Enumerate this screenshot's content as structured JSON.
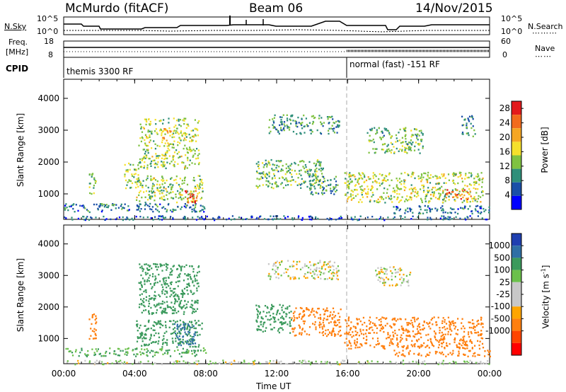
{
  "header": {
    "title_left": "McMurdo (fitACF)",
    "title_center": "Beam 06",
    "title_right": "14/Nov/2015"
  },
  "nsky_panel": {
    "left_label": "N.Sky",
    "right_label": "N.Search",
    "left_ticks": [
      "10^5",
      "10^0"
    ],
    "right_ticks": [
      "10^5",
      "10^0"
    ]
  },
  "freq_panel": {
    "left_label_line1": "Freq.",
    "left_label_line2": "[MHz]",
    "right_label": "Nave",
    "left_ticks": [
      "18",
      "8"
    ],
    "right_ticks": [
      "60",
      "0"
    ]
  },
  "cpid_panel": {
    "label": "CPID",
    "segments": [
      {
        "text": "themis 3300 RF",
        "start": "00:00"
      },
      {
        "text": "normal (fast) -151 RF",
        "start": "16:00"
      }
    ]
  },
  "colors": {
    "power_scale": [
      "#0000ff",
      "#1a4fa8",
      "#2f8f7a",
      "#7fc241",
      "#f5e02b",
      "#f5a623",
      "#f26b1d",
      "#e31a1c"
    ],
    "velocity_scale": [
      "#ff0000",
      "#ff4500",
      "#ff7f0e",
      "#ffa500",
      "#c8c8c8",
      "#c8c8c8",
      "#6bc04b",
      "#3b9a5c",
      "#2f6fa5",
      "#1f3fb0"
    ]
  },
  "chart_data": [
    {
      "type": "heatmap",
      "panel": "power",
      "ylabel": "Slant Range [km]",
      "xlim": [
        "00:00",
        "24:00"
      ],
      "ylim": [
        200,
        4600
      ],
      "y_ticks": [
        "1000",
        "2000",
        "3000",
        "4000"
      ],
      "colorbar": {
        "label": "Power [dB]",
        "ticks": [
          "4",
          "8",
          "12",
          "16",
          "20",
          "24",
          "28"
        ],
        "range": [
          0,
          30
        ]
      },
      "echo_regions": [
        {
          "t0": 0.0,
          "t1": 8.0,
          "r0": 450,
          "r1": 720,
          "value": 8
        },
        {
          "t0": 0.0,
          "t1": 24.0,
          "r0": 200,
          "r1": 330,
          "value": 6
        },
        {
          "t0": 1.4,
          "t1": 1.8,
          "r0": 1000,
          "r1": 1800,
          "value": 12
        },
        {
          "t0": 3.4,
          "t1": 4.2,
          "r0": 1200,
          "r1": 2000,
          "value": 13
        },
        {
          "t0": 4.0,
          "t1": 7.8,
          "r0": 750,
          "r1": 1600,
          "value": 14
        },
        {
          "t0": 4.2,
          "t1": 7.6,
          "r0": 1800,
          "r1": 3400,
          "value": 14
        },
        {
          "t0": 5.6,
          "t1": 6.0,
          "r0": 2500,
          "r1": 3100,
          "value": 20
        },
        {
          "t0": 6.8,
          "t1": 7.6,
          "r0": 750,
          "r1": 1150,
          "value": 26
        },
        {
          "t0": 10.8,
          "t1": 14.6,
          "r0": 1200,
          "r1": 2100,
          "value": 12
        },
        {
          "t0": 11.5,
          "t1": 15.5,
          "r0": 2900,
          "r1": 3500,
          "value": 10
        },
        {
          "t0": 13.8,
          "t1": 15.4,
          "r0": 1000,
          "r1": 1600,
          "value": 10
        },
        {
          "t0": 15.8,
          "t1": 23.6,
          "r0": 750,
          "r1": 1700,
          "value": 15
        },
        {
          "t0": 17.0,
          "t1": 20.2,
          "r0": 2300,
          "r1": 3100,
          "value": 12
        },
        {
          "t0": 21.5,
          "t1": 23.0,
          "r0": 850,
          "r1": 1150,
          "value": 24
        },
        {
          "t0": 18.5,
          "t1": 24.0,
          "r0": 400,
          "r1": 650,
          "value": 7
        },
        {
          "t0": 22.4,
          "t1": 23.2,
          "r0": 2800,
          "r1": 3500,
          "value": 10
        }
      ]
    },
    {
      "type": "heatmap",
      "panel": "velocity",
      "xlabel": "Time UT",
      "ylabel": "Slant Range [km]",
      "xlim": [
        "00:00",
        "24:00"
      ],
      "ylim": [
        200,
        4600
      ],
      "x_ticks": [
        "00:00",
        "04:00",
        "08:00",
        "12:00",
        "16:00",
        "20:00",
        "00:00"
      ],
      "y_ticks": [
        "1000",
        "2000",
        "3000",
        "4000"
      ],
      "colorbar": {
        "label": "Velocity [m s^-1]",
        "ticks": [
          "1000",
          "500",
          "100",
          "25",
          "-25",
          "-100",
          "-500",
          "-1000"
        ]
      },
      "echo_regions": [
        {
          "t0": 0.0,
          "t1": 8.0,
          "r0": 450,
          "r1": 720,
          "value": 100
        },
        {
          "t0": 0.0,
          "t1": 24.0,
          "r0": 200,
          "r1": 330,
          "value": 25
        },
        {
          "t0": 1.4,
          "t1": 1.8,
          "r0": 1000,
          "r1": 1800,
          "value": -300
        },
        {
          "t0": 4.0,
          "t1": 7.8,
          "r0": 750,
          "r1": 1600,
          "value": 300
        },
        {
          "t0": 4.2,
          "t1": 7.6,
          "r0": 1800,
          "r1": 3400,
          "value": 250
        },
        {
          "t0": 6.2,
          "t1": 7.4,
          "r0": 800,
          "r1": 1500,
          "value": 900
        },
        {
          "t0": 10.8,
          "t1": 12.8,
          "r0": 1200,
          "r1": 2100,
          "value": 200
        },
        {
          "t0": 12.8,
          "t1": 15.6,
          "r0": 1100,
          "r1": 2000,
          "value": -300
        },
        {
          "t0": 11.5,
          "t1": 15.5,
          "r0": 2900,
          "r1": 3500,
          "value": 0
        },
        {
          "t0": 15.8,
          "t1": 23.6,
          "r0": 700,
          "r1": 1700,
          "value": -300
        },
        {
          "t0": 17.5,
          "t1": 19.5,
          "r0": 2700,
          "r1": 3300,
          "value": 0
        },
        {
          "t0": 18.5,
          "t1": 24.0,
          "r0": 450,
          "r1": 650,
          "value": -200
        }
      ]
    }
  ]
}
